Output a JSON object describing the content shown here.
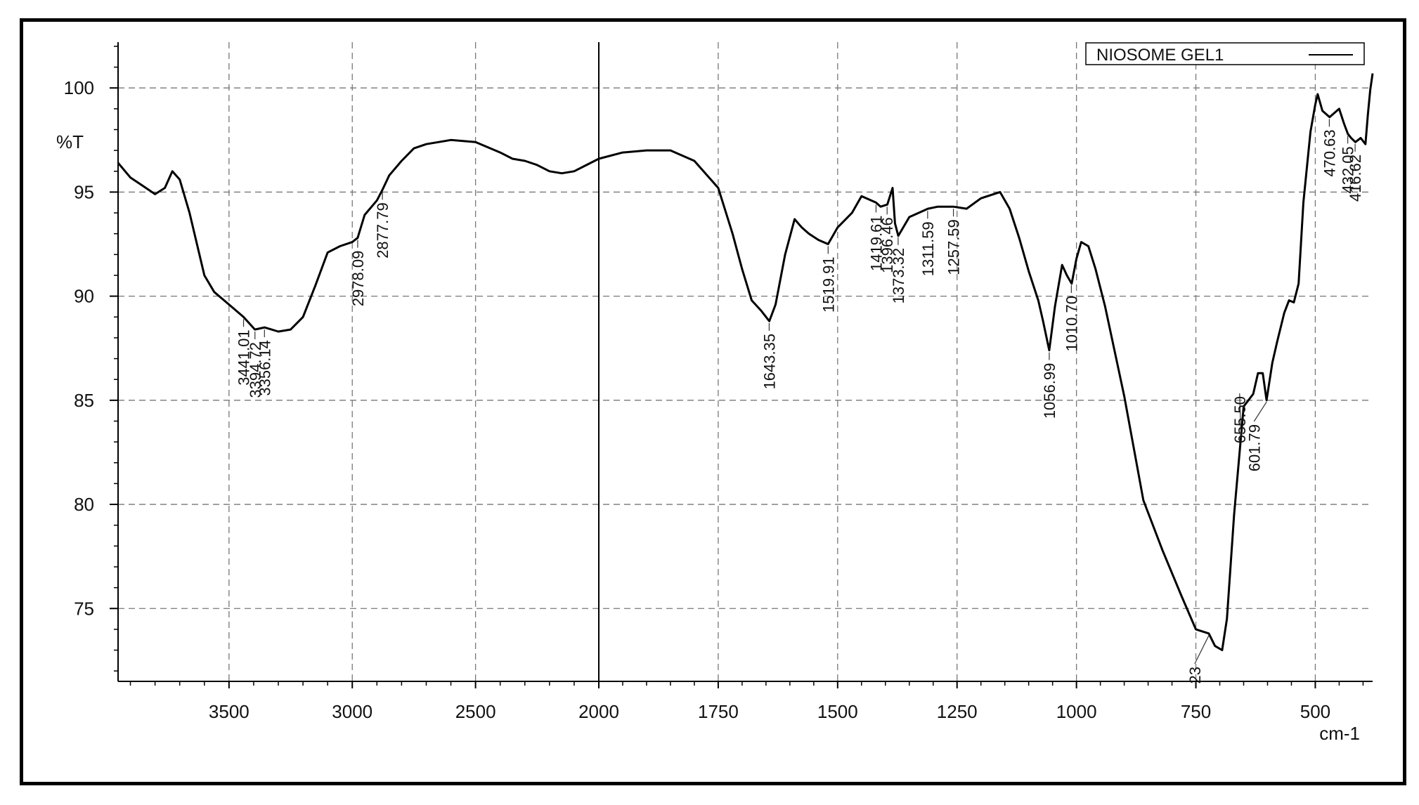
{
  "chart_data": {
    "type": "line",
    "title": "",
    "xlabel": "cm-1",
    "ylabel": "%T",
    "xlim": [
      3950,
      380
    ],
    "ylim": [
      71.5,
      102.2
    ],
    "x_axis_split": "linear 3950–2000 and 2000–380 cm-1 (two scale segments), divider line at 2000",
    "x_ticks": [
      3500,
      3000,
      2500,
      2000,
      1750,
      1500,
      1250,
      1000,
      750,
      500
    ],
    "x_tick_labels": [
      "3500",
      "3000",
      "2500",
      "2000",
      "1750",
      "1500",
      "1250",
      "1000",
      "750",
      "500"
    ],
    "y_ticks": [
      75,
      80,
      85,
      90,
      95,
      100
    ],
    "y_tick_labels": [
      "75",
      "80",
      "85",
      "90",
      "95",
      "100"
    ],
    "grid": true,
    "legend": {
      "position": "top-right",
      "entries": [
        "NIOSOME GEL1"
      ]
    },
    "series": [
      {
        "name": "NIOSOME GEL1",
        "color": "#000000",
        "x": [
          3950,
          3900,
          3850,
          3800,
          3760,
          3730,
          3700,
          3660,
          3600,
          3560,
          3500,
          3441,
          3395,
          3356,
          3300,
          3250,
          3200,
          3150,
          3100,
          3050,
          3000,
          2978,
          2950,
          2900,
          2878,
          2850,
          2800,
          2750,
          2700,
          2600,
          2500,
          2400,
          2350,
          2300,
          2250,
          2200,
          2150,
          2100,
          2050,
          2000,
          1950,
          1900,
          1850,
          1800,
          1750,
          1720,
          1700,
          1680,
          1660,
          1643,
          1630,
          1610,
          1590,
          1575,
          1560,
          1540,
          1520,
          1500,
          1470,
          1450,
          1420,
          1410,
          1396,
          1385,
          1380,
          1373,
          1350,
          1311,
          1290,
          1258,
          1230,
          1200,
          1160,
          1140,
          1120,
          1100,
          1080,
          1070,
          1057,
          1045,
          1030,
          1020,
          1010,
          1000,
          990,
          975,
          960,
          940,
          900,
          860,
          820,
          780,
          750,
          723,
          710,
          695,
          685,
          670,
          650,
          630,
          620,
          610,
          602,
          590,
          580,
          565,
          555,
          545,
          535,
          525,
          510,
          500,
          495,
          485,
          470,
          460,
          450,
          440,
          432,
          425,
          416,
          405,
          395,
          390,
          385,
          380
        ],
        "y": [
          96.4,
          95.7,
          95.3,
          94.9,
          95.2,
          96.0,
          95.6,
          94.0,
          91.0,
          90.2,
          89.6,
          89.0,
          88.4,
          88.5,
          88.3,
          88.4,
          89.0,
          90.5,
          92.1,
          92.4,
          92.6,
          92.8,
          93.9,
          94.6,
          95.1,
          95.8,
          96.5,
          97.1,
          97.3,
          97.5,
          97.4,
          96.9,
          96.6,
          96.5,
          96.3,
          96.0,
          95.9,
          96.0,
          96.3,
          96.6,
          96.9,
          97.0,
          97.0,
          96.5,
          95.2,
          93.0,
          91.3,
          89.8,
          89.3,
          88.8,
          89.6,
          92.0,
          93.7,
          93.3,
          93.0,
          92.7,
          92.5,
          93.3,
          94.0,
          94.8,
          94.5,
          94.3,
          94.4,
          95.2,
          93.5,
          92.9,
          93.8,
          94.2,
          94.3,
          94.3,
          94.2,
          94.7,
          95.0,
          94.2,
          92.8,
          91.2,
          89.8,
          88.8,
          87.4,
          89.5,
          91.5,
          91.0,
          90.6,
          91.8,
          92.6,
          92.4,
          91.3,
          89.5,
          85.2,
          80.2,
          77.8,
          75.6,
          74.0,
          73.8,
          73.2,
          73.0,
          74.5,
          79.5,
          84.7,
          85.3,
          86.3,
          86.3,
          85.0,
          86.8,
          87.8,
          89.2,
          89.8,
          89.7,
          90.6,
          94.5,
          97.9,
          99.2,
          99.7,
          98.9,
          98.6,
          98.8,
          99.0,
          98.3,
          97.8,
          97.6,
          97.4,
          97.6,
          97.3,
          98.7,
          99.9,
          100.7
        ]
      }
    ],
    "annotations": [
      {
        "label": "3441.01",
        "x": 3441.01
      },
      {
        "label": "3394.72",
        "x": 3394.72
      },
      {
        "label": "3356.14",
        "x": 3356.14
      },
      {
        "label": "2978.09",
        "x": 2978.09
      },
      {
        "label": "2877.79",
        "x": 2877.79
      },
      {
        "label": "1643.35",
        "x": 1643.35
      },
      {
        "label": "1519.91",
        "x": 1519.91
      },
      {
        "label": "1419.61",
        "x": 1419.61
      },
      {
        "label": "1396.46",
        "x": 1396.46
      },
      {
        "label": "1373.32",
        "x": 1373.32
      },
      {
        "label": "1311.59",
        "x": 1311.59
      },
      {
        "label": "1257.59",
        "x": 1257.59
      },
      {
        "label": "1056.99",
        "x": 1056.99
      },
      {
        "label": "1010.70",
        "x": 1010.7
      },
      {
        "label": "601.79",
        "x": 601.79
      },
      {
        "label": "655.50",
        "x": 655.5
      },
      {
        "label": "470.63",
        "x": 470.63
      },
      {
        "label": "432.05",
        "x": 432.05
      },
      {
        "label": "416.62",
        "x": 416.62
      },
      {
        "label": "23",
        "x": 723
      }
    ]
  }
}
